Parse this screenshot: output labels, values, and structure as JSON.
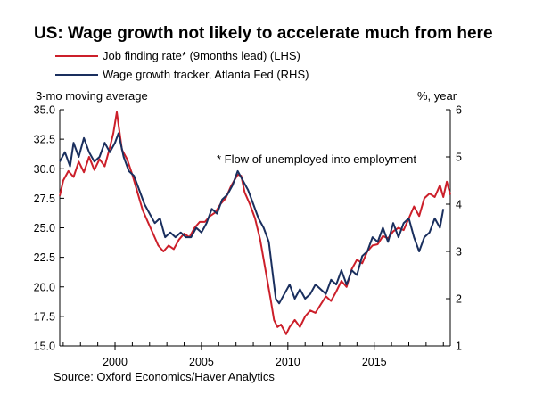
{
  "chart_data": {
    "type": "line",
    "title": "US: Wage growth not likely to accelerate much from here",
    "source": "Source: Oxford Economics/Haver Analytics",
    "footnote": "* Flow of unemployed into employment",
    "left_axis_label": "3-mo moving average",
    "right_axis_label": "%, year",
    "x_range": [
      1996.8,
      2019.4
    ],
    "x_ticks": [
      "2000",
      "2005",
      "2010",
      "2015"
    ],
    "left_ylim": [
      15.0,
      35.0
    ],
    "left_ticks": [
      "15.0",
      "17.5",
      "20.0",
      "22.5",
      "25.0",
      "27.5",
      "30.0",
      "32.5",
      "35.0"
    ],
    "right_ylim": [
      1,
      6
    ],
    "right_ticks": [
      "1",
      "2",
      "3",
      "4",
      "5",
      "6"
    ],
    "legend_position": "top-left",
    "series": [
      {
        "name": "Job finding rate* (9months lead) (LHS)",
        "axis": "left",
        "color": "#cc1f2a",
        "x": [
          1996.8,
          1997.0,
          1997.3,
          1997.6,
          1997.9,
          1998.2,
          1998.5,
          1998.8,
          1999.1,
          1999.4,
          1999.7,
          1999.9,
          2000.1,
          2000.4,
          2000.7,
          2001.0,
          2001.3,
          2001.6,
          2001.9,
          2002.2,
          2002.5,
          2002.8,
          2003.1,
          2003.4,
          2003.7,
          2004.0,
          2004.3,
          2004.6,
          2004.9,
          2005.2,
          2005.5,
          2005.8,
          2006.1,
          2006.4,
          2006.7,
          2006.9,
          2007.1,
          2007.3,
          2007.5,
          2007.8,
          2008.1,
          2008.4,
          2008.7,
          2009.0,
          2009.2,
          2009.4,
          2009.6,
          2009.9,
          2010.1,
          2010.4,
          2010.7,
          2011.0,
          2011.3,
          2011.6,
          2011.9,
          2012.2,
          2012.5,
          2012.8,
          2013.1,
          2013.4,
          2013.7,
          2014.0,
          2014.3,
          2014.6,
          2014.9,
          2015.2,
          2015.5,
          2015.8,
          2016.1,
          2016.4,
          2016.7,
          2017.0,
          2017.3,
          2017.6,
          2017.9,
          2018.2,
          2018.5,
          2018.8,
          2019.0,
          2019.2,
          2019.4
        ],
        "values": [
          27.7,
          29.0,
          29.8,
          29.3,
          30.6,
          29.7,
          31.0,
          29.9,
          30.8,
          30.2,
          31.8,
          33.0,
          34.8,
          31.6,
          30.8,
          29.5,
          28.0,
          26.5,
          25.5,
          24.5,
          23.5,
          23.0,
          23.5,
          23.2,
          24.0,
          24.5,
          24.2,
          25.0,
          25.5,
          25.5,
          26.0,
          26.3,
          27.0,
          27.5,
          28.5,
          29.0,
          29.5,
          29.4,
          28.0,
          27.0,
          25.8,
          24.0,
          21.5,
          19.0,
          17.2,
          16.6,
          16.8,
          16.0,
          16.6,
          17.2,
          16.6,
          17.5,
          18.0,
          17.8,
          18.5,
          19.2,
          18.8,
          19.6,
          20.5,
          20.0,
          21.5,
          22.3,
          22.0,
          23.0,
          23.5,
          23.6,
          24.3,
          24.1,
          24.7,
          25.0,
          24.8,
          25.8,
          26.8,
          26.0,
          27.5,
          27.9,
          27.6,
          28.6,
          27.6,
          28.9,
          27.8
        ]
      },
      {
        "name": "Wage growth tracker, Atlanta Fed (RHS)",
        "axis": "right",
        "color": "#1a2f5e",
        "x": [
          1996.8,
          1997.1,
          1997.4,
          1997.6,
          1997.9,
          1998.2,
          1998.5,
          1998.8,
          1999.1,
          1999.4,
          1999.7,
          2000.0,
          2000.2,
          2000.5,
          2000.8,
          2001.1,
          2001.4,
          2001.7,
          2002.0,
          2002.3,
          2002.6,
          2002.9,
          2003.2,
          2003.5,
          2003.8,
          2004.1,
          2004.4,
          2004.7,
          2005.0,
          2005.3,
          2005.6,
          2005.9,
          2006.2,
          2006.5,
          2006.8,
          2007.1,
          2007.4,
          2007.7,
          2008.0,
          2008.3,
          2008.6,
          2008.9,
          2009.1,
          2009.3,
          2009.5,
          2009.8,
          2010.1,
          2010.4,
          2010.7,
          2011.0,
          2011.3,
          2011.6,
          2011.9,
          2012.2,
          2012.5,
          2012.8,
          2013.1,
          2013.4,
          2013.7,
          2014.0,
          2014.3,
          2014.6,
          2014.9,
          2015.2,
          2015.5,
          2015.8,
          2016.1,
          2016.4,
          2016.7,
          2017.0,
          2017.3,
          2017.6,
          2017.9,
          2018.2,
          2018.5,
          2018.8,
          2019.0
        ],
        "values": [
          4.9,
          5.1,
          4.8,
          5.3,
          5.0,
          5.4,
          5.1,
          4.9,
          5.0,
          5.3,
          5.1,
          5.3,
          5.5,
          5.0,
          4.7,
          4.6,
          4.3,
          4.0,
          3.8,
          3.6,
          3.7,
          3.3,
          3.4,
          3.3,
          3.4,
          3.3,
          3.3,
          3.5,
          3.4,
          3.6,
          3.9,
          3.8,
          4.1,
          4.2,
          4.4,
          4.7,
          4.5,
          4.3,
          4.0,
          3.7,
          3.5,
          3.2,
          2.6,
          2.0,
          1.9,
          2.1,
          2.3,
          2.0,
          2.2,
          2.0,
          2.1,
          2.3,
          2.2,
          2.1,
          2.4,
          2.3,
          2.6,
          2.3,
          2.6,
          2.5,
          2.9,
          3.0,
          3.3,
          3.2,
          3.5,
          3.2,
          3.6,
          3.3,
          3.6,
          3.7,
          3.3,
          3.0,
          3.3,
          3.4,
          3.7,
          3.5,
          3.9
        ]
      }
    ]
  }
}
